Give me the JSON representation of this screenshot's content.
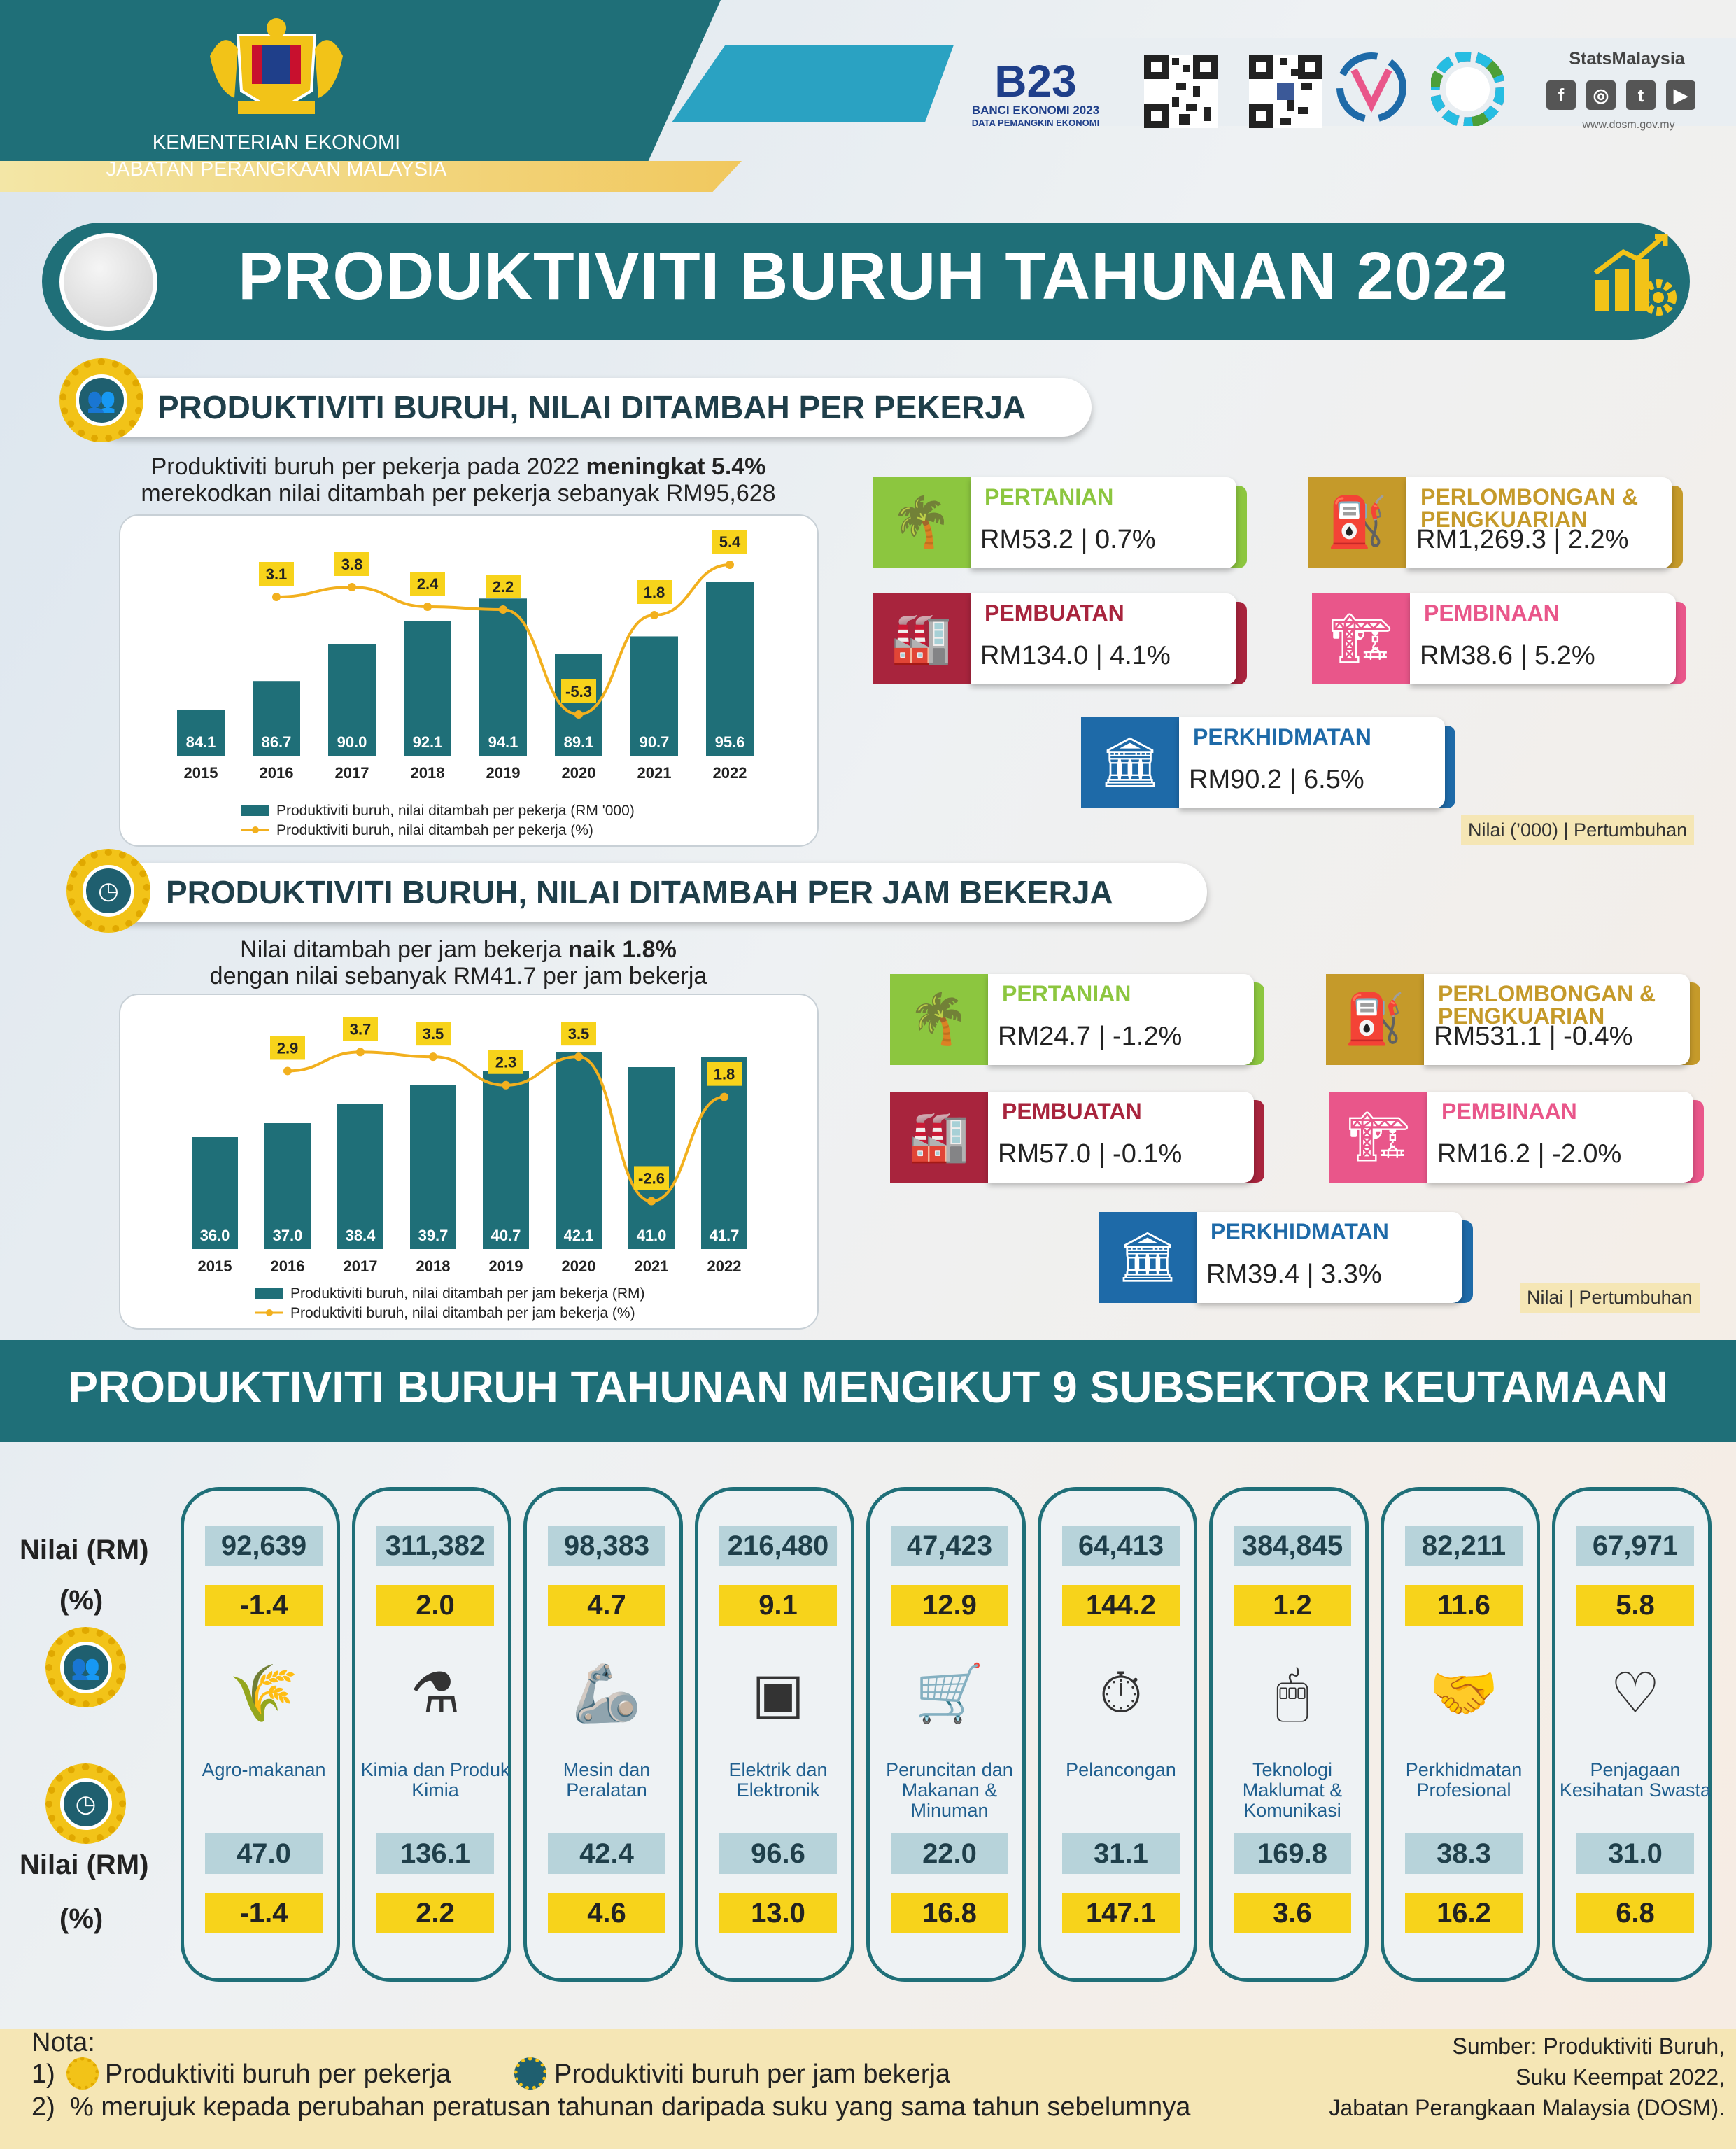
{
  "header": {
    "ministry_line1": "KEMENTERIAN EKONOMI",
    "ministry_line2": "JABATAN PERANGKAAN MALAYSIA",
    "banci_big": "B23",
    "banci_line1": "BANCI EKONOMI 2023",
    "banci_line2": "DATA PEMANGKIN EKONOMI",
    "stats_brand": "StatsMalaysia",
    "social": [
      "f",
      "◎",
      "t",
      "▶"
    ],
    "website": "www.dosm.gov.my"
  },
  "title": "PRODUKTIVITI BURUH TAHUNAN 2022",
  "section1": {
    "heading": "PRODUKTIVITI BURUH, NILAI DITAMBAH PER PEKERJA",
    "intro_a": "Produktiviti buruh per pekerja pada 2022 ",
    "intro_b": "meningkat 5.4%",
    "intro_c": "merekodkan nilai ditambah per pekerja sebanyak RM95,628",
    "sectors": [
      {
        "name": "PERTANIAN",
        "value": "RM53.2  |  0.7%",
        "color": "#8cc63f",
        "icon": "palm-icon"
      },
      {
        "name": "PERLOMBONGAN & PENGKUARIAN",
        "value": "RM1,269.3  |  2.2%",
        "color": "#c59a2a",
        "icon": "oil-rig-icon"
      },
      {
        "name": "PEMBUATAN",
        "value": "RM134.0  |  4.1%",
        "color": "#a8243d",
        "icon": "factory-icon"
      },
      {
        "name": "PEMBINAAN",
        "value": "RM38.6  |  5.2%",
        "color": "#e9568a",
        "icon": "crane-icon"
      },
      {
        "name": "PERKHIDMATAN",
        "value": "RM90.2  |  6.5%",
        "color": "#1e6aa8",
        "icon": "service-icon"
      }
    ],
    "legend": "Nilai (’000) |  Pertumbuhan"
  },
  "section2": {
    "heading": "PRODUKTIVITI BURUH, NILAI DITAMBAH PER JAM BEKERJA",
    "intro_a": "Nilai ditambah per jam bekerja ",
    "intro_b": "naik 1.8%",
    "intro_c": "dengan nilai sebanyak RM41.7 per jam bekerja",
    "sectors": [
      {
        "name": "PERTANIAN",
        "value": "RM24.7  |  -1.2%",
        "color": "#8cc63f",
        "icon": "palm-icon"
      },
      {
        "name": "PERLOMBONGAN & PENGKUARIAN",
        "value": "RM531.1  |  -0.4%",
        "color": "#c59a2a",
        "icon": "oil-rig-icon"
      },
      {
        "name": "PEMBUATAN",
        "value": "RM57.0  |  -0.1%",
        "color": "#a8243d",
        "icon": "factory-icon"
      },
      {
        "name": "PEMBINAAN",
        "value": "RM16.2  |  -2.0%",
        "color": "#e9568a",
        "icon": "crane-icon"
      },
      {
        "name": "PERKHIDMATAN",
        "value": "RM39.4  | 3.3%",
        "color": "#1e6aa8",
        "icon": "service-icon"
      }
    ],
    "legend": "Nilai |  Pertumbuhan"
  },
  "chart_data": [
    {
      "type": "bar",
      "categories": [
        "2015",
        "2016",
        "2017",
        "2018",
        "2019",
        "2020",
        "2021",
        "2022"
      ],
      "series": [
        {
          "name": "Produktiviti buruh, nilai ditambah per pekerja (RM '000)",
          "type": "bar",
          "values": [
            84.1,
            86.7,
            90.0,
            92.1,
            94.1,
            89.1,
            90.7,
            95.6
          ],
          "labels": [
            "84.1",
            "86.7",
            "90.0",
            "92.1",
            "94.1",
            "89.1",
            "90.7",
            "95.6"
          ],
          "color": "#1f6f78"
        },
        {
          "name": "Produktiviti buruh, nilai ditambah per pekerja (%)",
          "type": "line",
          "values": [
            null,
            3.1,
            3.8,
            2.4,
            2.2,
            -5.3,
            1.8,
            5.4
          ],
          "labels": [
            "",
            "3.1",
            "3.8",
            "2.4",
            "2.2",
            "-5.3",
            "1.8",
            "5.4"
          ],
          "color": "#f2b01e"
        }
      ]
    },
    {
      "type": "bar",
      "categories": [
        "2015",
        "2016",
        "2017",
        "2018",
        "2019",
        "2020",
        "2021",
        "2022"
      ],
      "series": [
        {
          "name": "Produktiviti buruh, nilai ditambah per jam bekerja (RM)",
          "type": "bar",
          "values": [
            36.0,
            37.0,
            38.4,
            39.7,
            40.7,
            42.1,
            41.0,
            41.7
          ],
          "labels": [
            "36.0",
            "37.0",
            "38.4",
            "39.7",
            "40.7",
            "42.1",
            "41.0",
            "41.7"
          ],
          "color": "#1f6f78"
        },
        {
          "name": "Produktiviti buruh, nilai ditambah per jam bekerja (%)",
          "type": "line",
          "values": [
            null,
            2.9,
            3.7,
            3.5,
            2.3,
            3.5,
            -2.6,
            1.8
          ],
          "labels": [
            "",
            "2.9",
            "3.7",
            "3.5",
            "2.3",
            "3.5",
            "-2.6",
            "1.8"
          ],
          "color": "#f2b01e"
        }
      ]
    }
  ],
  "subsectors": {
    "heading": "PRODUKTIVITI BURUH TAHUNAN MENGIKUT 9 SUBSEKTOR KEUTAMAAN",
    "row_value": "Nilai (RM)",
    "row_pct": "(%)",
    "items": [
      {
        "label": "Agro-makanan",
        "icon": "wheat-icon",
        "glyph": "🌾",
        "w_val": "92,639",
        "w_pct": "-1.4",
        "h_val": "47.0",
        "h_pct": "-1.4"
      },
      {
        "label": "Kimia dan Produk Kimia",
        "icon": "flask-icon",
        "glyph": "⚗",
        "w_val": "311,382",
        "w_pct": "2.0",
        "h_val": "136.1",
        "h_pct": "2.2"
      },
      {
        "label": "Mesin dan Peralatan",
        "icon": "robot-arm-icon",
        "glyph": "🦾",
        "w_val": "98,383",
        "w_pct": "4.7",
        "h_val": "42.4",
        "h_pct": "4.6"
      },
      {
        "label": "Elektrik dan Elektronik",
        "icon": "chip-icon",
        "glyph": "▣",
        "w_val": "216,480",
        "w_pct": "9.1",
        "h_val": "96.6",
        "h_pct": "13.0"
      },
      {
        "label": "Peruncitan dan Makanan & Minuman",
        "icon": "cart-icon",
        "glyph": "🛒",
        "w_val": "47,423",
        "w_pct": "12.9",
        "h_val": "22.0",
        "h_pct": "16.8"
      },
      {
        "label": "Pelancongan",
        "icon": "compass-icon",
        "glyph": "⏱",
        "w_val": "64,413",
        "w_pct": "144.2",
        "h_val": "31.1",
        "h_pct": "147.1"
      },
      {
        "label": "Teknologi Maklumat & Komunikasi",
        "icon": "mouse-icon",
        "glyph": "🖱",
        "w_val": "384,845",
        "w_pct": "1.2",
        "h_val": "169.8",
        "h_pct": "3.6"
      },
      {
        "label": "Perkhidmatan Profesional",
        "icon": "handshake-icon",
        "glyph": "🤝",
        "w_val": "82,211",
        "w_pct": "11.6",
        "h_val": "38.3",
        "h_pct": "16.2"
      },
      {
        "label": "Penjagaan Kesihatan Swasta",
        "icon": "heart-icon",
        "glyph": "♡",
        "w_val": "67,971",
        "w_pct": "5.8",
        "h_val": "31.0",
        "h_pct": "6.8"
      }
    ]
  },
  "notes": {
    "title": "Nota:",
    "n1_num": "1)",
    "n1a": "Produktiviti buruh per pekerja",
    "n1b": "Produktiviti buruh per jam bekerja",
    "n2_num": "2)",
    "n2": "% merujuk kepada perubahan peratusan tahunan daripada suku yang sama tahun sebelumnya",
    "source1": "Sumber: Produktiviti Buruh,",
    "source2": "Suku Keempat 2022,",
    "source3": "Jabatan Perangkaan Malaysia (DOSM)."
  }
}
